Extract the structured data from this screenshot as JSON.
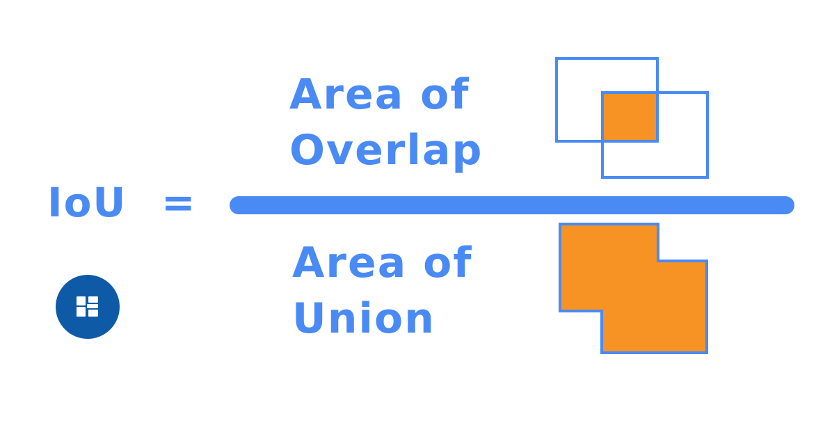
{
  "formula": {
    "lhs": "IoU",
    "equals": "=",
    "numerator": [
      "Area of",
      "Overlap"
    ],
    "denominator": [
      "Area of",
      "Union"
    ]
  },
  "colors": {
    "text": "#4a8af4",
    "bar": "#4a8af4",
    "box_outline": "#4a8af4",
    "fill": "#f69324",
    "logo_bg": "#0e5aa7"
  },
  "icons": {
    "overlap_illustration": "two-overlapping-boxes-intersection-icon",
    "union_illustration": "two-overlapping-boxes-union-icon",
    "logo": "brand-logo-icon"
  }
}
